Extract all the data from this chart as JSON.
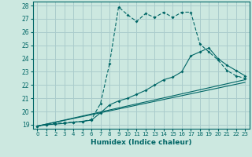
{
  "xlabel": "Humidex (Indice chaleur)",
  "bg_color": "#cce8e0",
  "grid_color": "#aacccc",
  "line_color": "#006666",
  "xlim": [
    -0.5,
    23.5
  ],
  "ylim": [
    18.7,
    28.3
  ],
  "yticks": [
    19,
    20,
    21,
    22,
    23,
    24,
    25,
    26,
    27,
    28
  ],
  "xticks": [
    0,
    1,
    2,
    3,
    4,
    5,
    6,
    7,
    8,
    9,
    10,
    11,
    12,
    13,
    14,
    15,
    16,
    17,
    18,
    19,
    20,
    21,
    22,
    23
  ],
  "curve_dashed_x": [
    0,
    1,
    2,
    3,
    4,
    5,
    6,
    7,
    8,
    9,
    10,
    11,
    12,
    13,
    14,
    15,
    16,
    17,
    18,
    19,
    20,
    21,
    22,
    23
  ],
  "curve_dashed_y": [
    18.9,
    19.0,
    19.1,
    19.15,
    19.2,
    19.25,
    19.4,
    20.6,
    23.6,
    27.9,
    27.3,
    26.8,
    27.4,
    27.1,
    27.5,
    27.1,
    27.5,
    27.5,
    25.1,
    24.5,
    23.9,
    23.1,
    22.7,
    22.5
  ],
  "curve_solid_x": [
    0,
    1,
    2,
    3,
    4,
    5,
    6,
    7,
    8,
    9,
    10,
    11,
    12,
    13,
    14,
    15,
    16,
    17,
    18,
    19,
    20,
    21,
    22,
    23
  ],
  "curve_solid_y": [
    18.9,
    19.0,
    19.05,
    19.1,
    19.2,
    19.25,
    19.35,
    19.9,
    20.5,
    20.8,
    21.0,
    21.3,
    21.6,
    22.0,
    22.4,
    22.6,
    23.0,
    24.2,
    24.5,
    24.8,
    24.0,
    23.5,
    23.1,
    22.7
  ],
  "trend1_x": [
    0,
    23
  ],
  "trend1_y": [
    18.9,
    22.4
  ],
  "trend2_x": [
    0,
    23
  ],
  "trend2_y": [
    18.9,
    22.2
  ]
}
